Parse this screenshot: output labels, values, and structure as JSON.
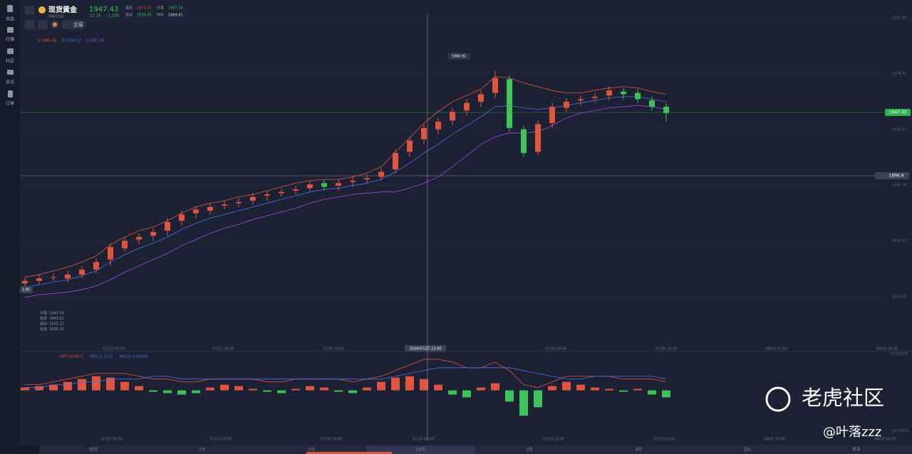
{
  "header": {
    "name": "现货黄金",
    "symbol": "XAUUSD",
    "price": 1947.43,
    "change": -22.18,
    "change_pct": "-1.13%",
    "stats": [
      [
        "最高",
        "1971.42"
      ],
      [
        "开盘",
        "1967.14"
      ],
      [
        "最低",
        "1939.45"
      ],
      [
        "昨收",
        "1969.61"
      ]
    ],
    "trade_button": "交易"
  },
  "sidebar": [
    "自选",
    "行情",
    "社区",
    "资讯",
    "订单"
  ],
  "chart_data": {
    "type": "candlestick",
    "open": [
      1811,
      1813,
      1816,
      1815,
      1818,
      1822,
      1830,
      1839,
      1846,
      1849,
      1853,
      1861,
      1867,
      1869,
      1873,
      1875,
      1877,
      1881,
      1883,
      1885,
      1887,
      1891,
      1889,
      1892,
      1894,
      1896,
      1902,
      1916,
      1926,
      1934,
      1941,
      1949,
      1956,
      1963,
      1974,
      1934,
      1916,
      1939,
      1951,
      1957,
      1959,
      1961,
      1964,
      1963,
      1957,
      1952
    ],
    "high": [
      1816,
      1818,
      1819,
      1821,
      1825,
      1831,
      1843,
      1848,
      1851,
      1855,
      1863,
      1869,
      1873,
      1875,
      1877,
      1879,
      1883,
      1885,
      1887,
      1889,
      1893,
      1894,
      1894,
      1896,
      1898,
      1903,
      1918,
      1928,
      1938,
      1943,
      1951,
      1958,
      1965,
      1980.92,
      1977,
      1937,
      1941,
      1955,
      1959,
      1961,
      1963,
      1968,
      1967,
      1966,
      1960,
      1955
    ],
    "low": [
      1808,
      1810,
      1813,
      1812,
      1815,
      1819,
      1825,
      1836,
      1842,
      1845,
      1849,
      1857,
      1863,
      1866,
      1870,
      1872,
      1874,
      1877,
      1880,
      1882,
      1884,
      1885,
      1885,
      1888,
      1891,
      1893,
      1899,
      1912,
      1922,
      1930,
      1937,
      1945,
      1952,
      1959,
      1932,
      1912,
      1913,
      1935,
      1948,
      1953,
      1955,
      1957,
      1958,
      1955,
      1949,
      1940
    ],
    "close": [
      1813,
      1815,
      1816,
      1818,
      1822,
      1828,
      1840,
      1845,
      1848,
      1852,
      1860,
      1866,
      1870,
      1872,
      1874,
      1876,
      1880,
      1882,
      1884,
      1886,
      1890,
      1888,
      1891,
      1893,
      1895,
      1900,
      1915,
      1925,
      1935,
      1940,
      1948,
      1955,
      1962,
      1975,
      1935,
      1915,
      1938,
      1952,
      1956,
      1958,
      1960,
      1965,
      1962,
      1958,
      1952,
      1947
    ],
    "bands": [
      {
        "color": "#e0553f",
        "values": [
          1816,
          1818,
          1821,
          1824,
          1828,
          1833,
          1842,
          1848,
          1853,
          1856,
          1861,
          1867,
          1872,
          1875,
          1877,
          1880,
          1882,
          1885,
          1888,
          1891,
          1893,
          1894,
          1894,
          1896,
          1899,
          1904,
          1916,
          1927,
          1939,
          1948,
          1956,
          1961,
          1966,
          1976,
          1975,
          1971,
          1968,
          1965,
          1963,
          1963,
          1965,
          1967,
          1968,
          1967,
          1964,
          1962
        ]
      },
      {
        "color": "#4a72e8",
        "values": [
          1808,
          1810,
          1812,
          1814,
          1817,
          1821,
          1828,
          1834,
          1839,
          1843,
          1848,
          1854,
          1859,
          1863,
          1866,
          1869,
          1872,
          1875,
          1878,
          1881,
          1884,
          1886,
          1887,
          1889,
          1891,
          1894,
          1900,
          1907,
          1915,
          1922,
          1930,
          1937,
          1944,
          1952,
          1953,
          1951,
          1950,
          1951,
          1953,
          1955,
          1957,
          1959,
          1960,
          1960,
          1958,
          1956
        ]
      },
      {
        "color": "#9b4ee0",
        "values": [
          1800,
          1802,
          1803,
          1804,
          1806,
          1809,
          1814,
          1820,
          1825,
          1830,
          1835,
          1841,
          1846,
          1851,
          1855,
          1858,
          1862,
          1865,
          1868,
          1871,
          1875,
          1878,
          1880,
          1882,
          1883,
          1884,
          1884,
          1887,
          1891,
          1896,
          1904,
          1913,
          1922,
          1928,
          1931,
          1931,
          1932,
          1937,
          1943,
          1947,
          1949,
          1951,
          1952,
          1953,
          1952,
          1950
        ]
      }
    ],
    "band_labels": [
      "U:1965.48",
      "M:1939.32",
      "L:1901.08"
    ],
    "ylim": [
      1758.9,
      2025.8
    ],
    "yticks": [
      2022.89,
      1978.41,
      1933.87,
      1889.38,
      1844.93,
      1800.45
    ],
    "last_price": 1947.43,
    "alert_price": 1896.9,
    "peak_label": "1980.92",
    "left_marker": "1.95",
    "ohlc_box": [
      [
        "开盘",
        "1943.59"
      ],
      [
        "最高",
        "1943.61"
      ],
      [
        "最低",
        "1935.12"
      ],
      [
        "收盘",
        "1938.20"
      ]
    ],
    "x_labels": [
      "07/22 00:00",
      "07/23 19:00",
      "07/24 19:00",
      "2020/07/27 23:00",
      "07/29 14:00",
      "07/30 23:00",
      "08/01 07:00",
      "08/03 16:00"
    ],
    "macd": {
      "labels": [
        "DIFF:10.8971",
        "DEA:11.3715",
        "MACD:-0.96548"
      ],
      "diff": [
        2,
        2,
        3,
        4,
        5,
        6,
        6,
        6,
        5,
        4,
        4,
        3,
        3,
        4,
        4,
        4,
        4,
        3,
        3,
        4,
        4,
        4,
        4,
        3,
        4,
        5,
        7,
        9,
        11,
        11,
        10,
        8,
        8,
        10,
        7,
        2,
        1,
        3,
        5,
        5,
        5,
        5,
        4,
        4,
        4,
        3
      ],
      "dea": [
        1,
        1,
        2,
        2,
        3,
        3,
        4,
        4,
        4,
        5,
        5,
        4,
        4,
        4,
        4,
        4,
        4,
        4,
        4,
        4,
        4,
        4,
        4,
        4,
        4,
        4,
        5,
        6,
        7,
        8,
        8,
        8,
        8,
        8,
        8,
        7,
        6,
        5,
        4,
        4,
        5,
        5,
        5,
        5,
        5,
        4
      ],
      "hist": [
        1,
        1.5,
        2,
        3,
        4,
        5,
        4.5,
        3,
        1.5,
        -0.5,
        -1,
        -1.5,
        -1,
        1,
        2,
        1.5,
        0.5,
        -0.5,
        -1,
        0.5,
        1.5,
        1,
        -0.5,
        -1,
        1,
        3,
        4.5,
        5,
        4,
        2,
        -1.5,
        -2.5,
        1,
        2.5,
        -4,
        -9,
        -6,
        1.5,
        3,
        2,
        1,
        0.5,
        -0.5,
        0.5,
        -1.5,
        -2.5
      ],
      "ylim": [
        -15,
        13
      ],
      "yticks": [
        12.83076,
        -14.32578
      ],
      "x_labels": [
        "07/22 00:00",
        "07/23 10:00",
        "07/24 19:00",
        "07/28 04:00",
        "07/29 14:00",
        "07/30 23:00",
        "08/01 07:00",
        "08/02 16:00"
      ]
    }
  },
  "timeframes": [
    "分时",
    "1分",
    "5分",
    "15分",
    "1时",
    "4时",
    "日K",
    "更多"
  ],
  "watermark": {
    "brand": "老虎社区",
    "author": "@叶落zzz"
  }
}
